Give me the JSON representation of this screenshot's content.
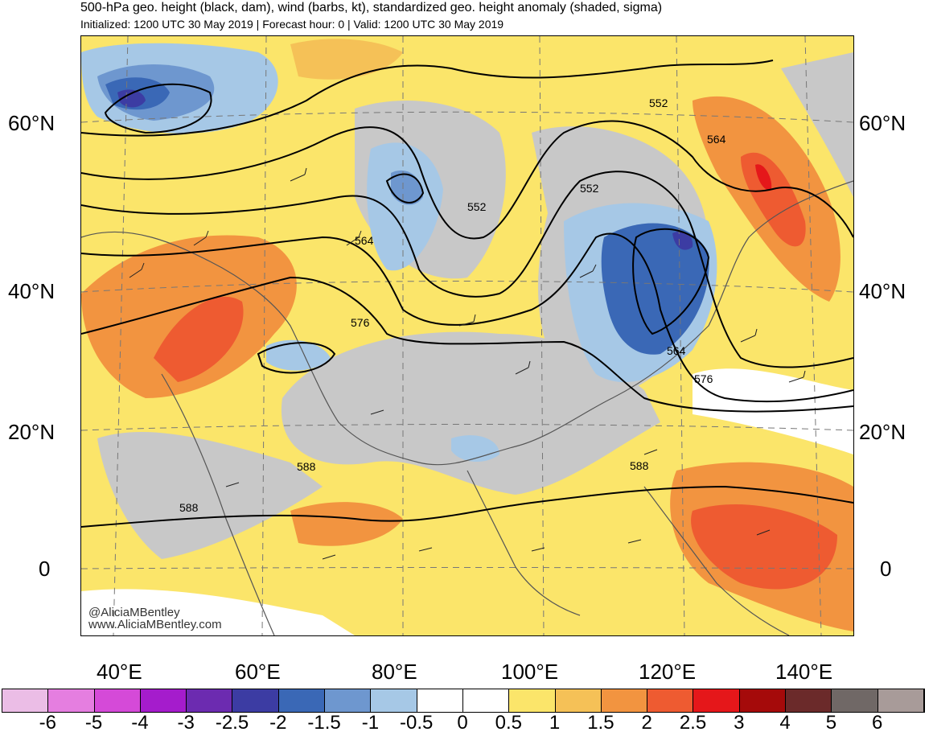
{
  "title": "500-hPa geo. height (black, dam), wind (barbs, kt), standardized geo. height anomaly (shaded, sigma)",
  "subtitle": "Initialized: 1200 UTC 30 May 2019 | Forecast hour: 0 | Valid: 1200 UTC 30 May 2019",
  "watermark": {
    "handle": "@AliciaMBentley",
    "site": "www.AliciaMBentley.com"
  },
  "map": {
    "lat_labels_left": [
      "60°N",
      "40°N",
      "20°N",
      "0"
    ],
    "lat_labels_right": [
      "60°N",
      "40°N",
      "20°N",
      "0"
    ],
    "lon_labels": [
      "40°E",
      "60°E",
      "80°E",
      "100°E",
      "120°E",
      "140°E"
    ],
    "contour_labels": [
      "552",
      "564",
      "552",
      "564",
      "552",
      "576",
      "564",
      "576",
      "588",
      "588",
      "588"
    ]
  },
  "colorbar": {
    "labels": [
      "-6",
      "-5",
      "-4",
      "-3",
      "-2.5",
      "-2",
      "-1.5",
      "-1",
      "-0.5",
      "0",
      "0.5",
      "1",
      "1.5",
      "2",
      "2.5",
      "3",
      "4",
      "5",
      "6"
    ],
    "colors": [
      "#ebbde6",
      "#e57ee0",
      "#d54ad8",
      "#a51ccc",
      "#6c2bb0",
      "#3c3ca3",
      "#3a68b6",
      "#6e97cf",
      "#a6c8e6",
      "#ffffff",
      "#ffffff",
      "#fbe56a",
      "#f5c157",
      "#f29440",
      "#ee5b31",
      "#e5171a",
      "#a50a0a",
      "#6b2a2a",
      "#706866",
      "#a89b99"
    ]
  }
}
